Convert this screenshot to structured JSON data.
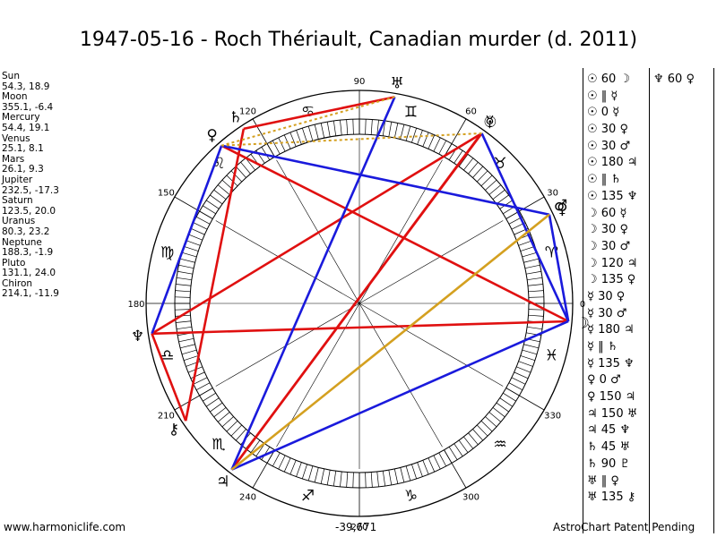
{
  "title": "1947-05-16 - Roch Thériault, Canadian murder (d. 2011)",
  "positions": [
    {
      "name": "Sun",
      "coords": "54.3, 18.9"
    },
    {
      "name": "Moon",
      "coords": "355.1, -6.4"
    },
    {
      "name": "Mercury",
      "coords": "54.4, 19.1"
    },
    {
      "name": "Venus",
      "coords": "25.1, 8.1"
    },
    {
      "name": "Mars",
      "coords": "26.1, 9.3"
    },
    {
      "name": "Jupiter",
      "coords": "232.5, -17.3"
    },
    {
      "name": "Saturn",
      "coords": "123.5, 20.0"
    },
    {
      "name": "Uranus",
      "coords": "80.3, 23.2"
    },
    {
      "name": "Neptune",
      "coords": "188.3, -1.9"
    },
    {
      "name": "Pluto",
      "coords": "131.1, 24.0"
    },
    {
      "name": "Chiron",
      "coords": "214.1, -11.9"
    }
  ],
  "aspects_col1": [
    "☉ 60 ☽",
    "☉ ‖ ☿",
    "☉ 0 ☿",
    "☉ 30 ♀",
    "☉ 30 ♂",
    "☉ 180 ♃",
    "☉ ‖ ♄",
    "☉ 135 ♆",
    "☽ 60 ☿",
    "☽ 30 ♀",
    "☽ 30 ♂",
    "☽ 120 ♃",
    "☽ 135 ♀",
    "☿ 30 ♀",
    "☿ 30 ♂",
    "☿ 180 ♃",
    "☿ ‖ ♄",
    "☿ 135 ♆",
    "♀ 0 ♂",
    "♀ 150 ♃",
    "♃ 150 ♅",
    "♃ 45 ♆",
    "♄ 45 ♅",
    "♄ 90 ♇",
    "♅ ‖ ♀",
    "♅ 135 ⚷"
  ],
  "aspects_col2": [
    "♆ 60 ♀"
  ],
  "footer": {
    "left": "www.harmoniclife.com",
    "center": "-39,671",
    "right": "AstroChart Patent Pending"
  },
  "wheel": {
    "degree_labels": [
      {
        "deg": 0,
        "text": "0"
      },
      {
        "deg": 30,
        "text": "30"
      },
      {
        "deg": 60,
        "text": "60"
      },
      {
        "deg": 90,
        "text": "90"
      },
      {
        "deg": 120,
        "text": "120"
      },
      {
        "deg": 150,
        "text": "150"
      },
      {
        "deg": 180,
        "text": "180"
      },
      {
        "deg": 210,
        "text": "210"
      },
      {
        "deg": 240,
        "text": "240"
      },
      {
        "deg": 270,
        "text": "270"
      },
      {
        "deg": 300,
        "text": "300"
      },
      {
        "deg": 330,
        "text": "330"
      }
    ],
    "signs": [
      {
        "deg": 15,
        "glyph": "♈"
      },
      {
        "deg": 45,
        "glyph": "♉"
      },
      {
        "deg": 75,
        "glyph": "♊"
      },
      {
        "deg": 105,
        "glyph": "♋"
      },
      {
        "deg": 135,
        "glyph": "♌"
      },
      {
        "deg": 165,
        "glyph": "♍"
      },
      {
        "deg": 195,
        "glyph": "♎"
      },
      {
        "deg": 225,
        "glyph": "♏"
      },
      {
        "deg": 255,
        "glyph": "♐"
      },
      {
        "deg": 285,
        "glyph": "♑"
      },
      {
        "deg": 315,
        "glyph": "♒"
      },
      {
        "deg": 345,
        "glyph": "♓"
      }
    ],
    "planets": [
      {
        "name": "sun",
        "glyph": "☉",
        "lon": 54.3
      },
      {
        "name": "moon",
        "glyph": "☽",
        "lon": 355.1
      },
      {
        "name": "mercury",
        "glyph": "☿",
        "lon": 54.4
      },
      {
        "name": "venus",
        "glyph": "♀",
        "lon": 25.1
      },
      {
        "name": "mars",
        "glyph": "♂",
        "lon": 26.1
      },
      {
        "name": "jupiter",
        "glyph": "♃",
        "lon": 232.5
      },
      {
        "name": "saturn",
        "glyph": "♄",
        "lon": 123.5
      },
      {
        "name": "uranus",
        "glyph": "♅",
        "lon": 80.3
      },
      {
        "name": "neptune",
        "glyph": "♆",
        "lon": 188.3
      },
      {
        "name": "pluto",
        "glyph": "♀",
        "lon": 131.1
      },
      {
        "name": "chiron",
        "glyph": "⚷",
        "lon": 214.1
      }
    ],
    "aspect_lines": [
      {
        "a": "sun",
        "b": "jupiter",
        "color": "#e01010"
      },
      {
        "a": "mercury",
        "b": "jupiter",
        "color": "#e01010"
      },
      {
        "a": "moon",
        "b": "pluto",
        "color": "#e01010"
      },
      {
        "a": "moon",
        "b": "neptune",
        "color": "#e01010"
      },
      {
        "a": "saturn",
        "b": "uranus",
        "color": "#e01010"
      },
      {
        "a": "saturn",
        "b": "chiron",
        "color": "#e01010"
      },
      {
        "a": "sun",
        "b": "neptune",
        "color": "#e01010"
      },
      {
        "a": "pluto",
        "b": "neptune",
        "color": "#1a1adc"
      },
      {
        "a": "pluto",
        "b": "venus",
        "color": "#1a1adc"
      },
      {
        "a": "sun",
        "b": "moon",
        "color": "#1a1adc"
      },
      {
        "a": "venus",
        "b": "moon",
        "color": "#1a1adc"
      },
      {
        "a": "uranus",
        "b": "jupiter",
        "color": "#1a1adc"
      },
      {
        "a": "moon",
        "b": "jupiter",
        "color": "#1a1adc"
      },
      {
        "a": "neptune",
        "b": "chiron",
        "color": "#e01010"
      },
      {
        "a": "venus",
        "b": "jupiter",
        "color": "#d4a020"
      }
    ],
    "dotted_lines": [
      {
        "a": "uranus",
        "b": "pluto",
        "color": "#d4a020"
      },
      {
        "a": "sun",
        "b": "pluto",
        "color": "#d4a020"
      }
    ]
  }
}
